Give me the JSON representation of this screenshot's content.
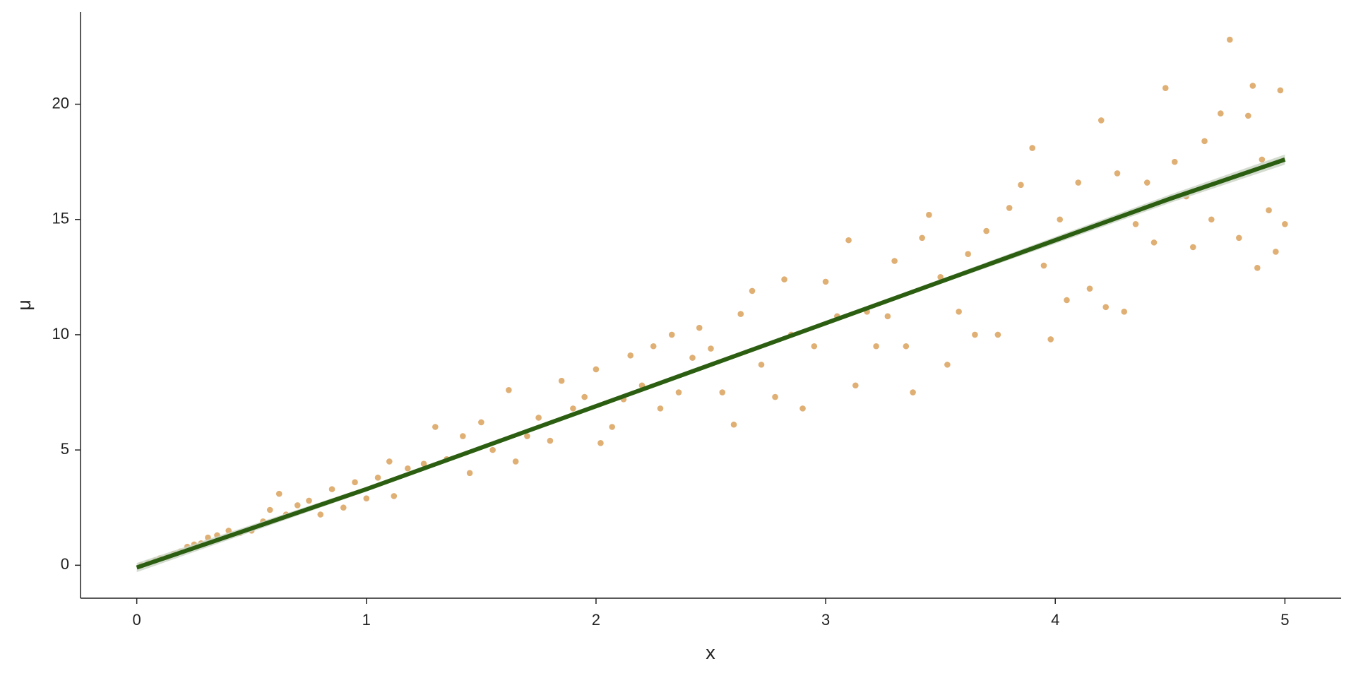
{
  "chart_data": {
    "type": "scatter",
    "x_label": "x",
    "y_label": "μ",
    "xlim": [
      -0.245,
      5.245
    ],
    "ylim": [
      -1.43,
      24.0
    ],
    "xticks": [
      0,
      1,
      2,
      3,
      4,
      5
    ],
    "yticks": [
      0,
      5,
      10,
      15,
      20
    ],
    "grid": false,
    "series": [
      {
        "type": "scatter",
        "color": "#d9a15b",
        "x": [
          0.02,
          0.05,
          0.08,
          0.1,
          0.13,
          0.16,
          0.19,
          0.22,
          0.25,
          0.28,
          0.31,
          0.35,
          0.4,
          0.45,
          0.5,
          0.55,
          0.58,
          0.62,
          0.65,
          0.7,
          0.75,
          0.8,
          0.85,
          0.9,
          0.95,
          1.0,
          1.05,
          1.1,
          1.12,
          1.18,
          1.25,
          1.3,
          1.35,
          1.42,
          1.45,
          1.5,
          1.55,
          1.62,
          1.65,
          1.7,
          1.75,
          1.8,
          1.85,
          1.9,
          1.95,
          2.0,
          2.02,
          2.07,
          2.12,
          2.15,
          2.2,
          2.25,
          2.28,
          2.33,
          2.36,
          2.42,
          2.45,
          2.5,
          2.55,
          2.6,
          2.63,
          2.68,
          2.72,
          2.78,
          2.82,
          2.85,
          2.9,
          2.95,
          3.0,
          3.05,
          3.1,
          3.13,
          3.18,
          3.22,
          3.27,
          3.3,
          3.35,
          3.38,
          3.42,
          3.45,
          3.5,
          3.53,
          3.58,
          3.62,
          3.65,
          3.7,
          3.75,
          3.8,
          3.85,
          3.9,
          3.95,
          3.98,
          4.02,
          4.05,
          4.1,
          4.15,
          4.2,
          4.22,
          4.27,
          4.3,
          4.35,
          4.4,
          4.43,
          4.48,
          4.52,
          4.57,
          4.6,
          4.65,
          4.68,
          4.72,
          4.76,
          4.8,
          4.84,
          4.86,
          4.88,
          4.9,
          4.93,
          4.96,
          4.98,
          5.0
        ],
        "values": [
          0.0,
          0.1,
          0.2,
          0.3,
          0.35,
          0.5,
          0.6,
          0.8,
          0.9,
          0.95,
          1.2,
          1.3,
          1.5,
          1.4,
          1.5,
          1.9,
          2.4,
          3.1,
          2.2,
          2.6,
          2.8,
          2.2,
          3.3,
          2.5,
          3.6,
          2.9,
          3.8,
          4.5,
          3.0,
          4.2,
          4.4,
          6.0,
          4.6,
          5.6,
          4.0,
          6.2,
          5.0,
          7.6,
          4.5,
          5.6,
          6.4,
          5.4,
          8.0,
          6.8,
          7.3,
          8.5,
          5.3,
          6.0,
          7.2,
          9.1,
          7.8,
          9.5,
          6.8,
          10.0,
          7.5,
          9.0,
          10.3,
          9.4,
          7.5,
          6.1,
          10.9,
          11.9,
          8.7,
          7.3,
          12.4,
          10.0,
          6.8,
          9.5,
          12.3,
          10.8,
          14.1,
          7.8,
          11.0,
          9.5,
          10.8,
          13.2,
          9.5,
          7.5,
          14.2,
          15.2,
          12.5,
          8.7,
          11.0,
          13.5,
          10.0,
          14.5,
          10.0,
          15.5,
          16.5,
          18.1,
          13.0,
          9.8,
          15.0,
          11.5,
          16.6,
          12.0,
          19.3,
          11.2,
          17.0,
          11.0,
          14.8,
          16.6,
          14.0,
          20.7,
          17.5,
          16.0,
          13.8,
          18.4,
          15.0,
          19.6,
          22.8,
          14.2,
          19.5,
          20.8,
          12.9,
          17.6,
          15.4,
          13.6,
          20.6,
          14.8
        ]
      },
      {
        "type": "line",
        "color": "#2b5e10",
        "band_color": "#c9d3c4",
        "x": [
          0,
          0.5,
          1,
          1.5,
          2,
          2.5,
          3,
          3.5,
          4,
          4.5,
          5
        ],
        "values": [
          -0.1,
          1.6,
          3.3,
          5.1,
          6.9,
          8.7,
          10.5,
          12.3,
          14.1,
          15.9,
          17.6
        ],
        "lower": [
          -0.3,
          1.45,
          3.2,
          5.0,
          6.8,
          8.6,
          10.4,
          12.2,
          13.95,
          15.72,
          17.38
        ],
        "upper": [
          0.1,
          1.75,
          3.4,
          5.2,
          7.0,
          8.8,
          10.6,
          12.4,
          14.25,
          16.08,
          17.82
        ]
      }
    ]
  }
}
